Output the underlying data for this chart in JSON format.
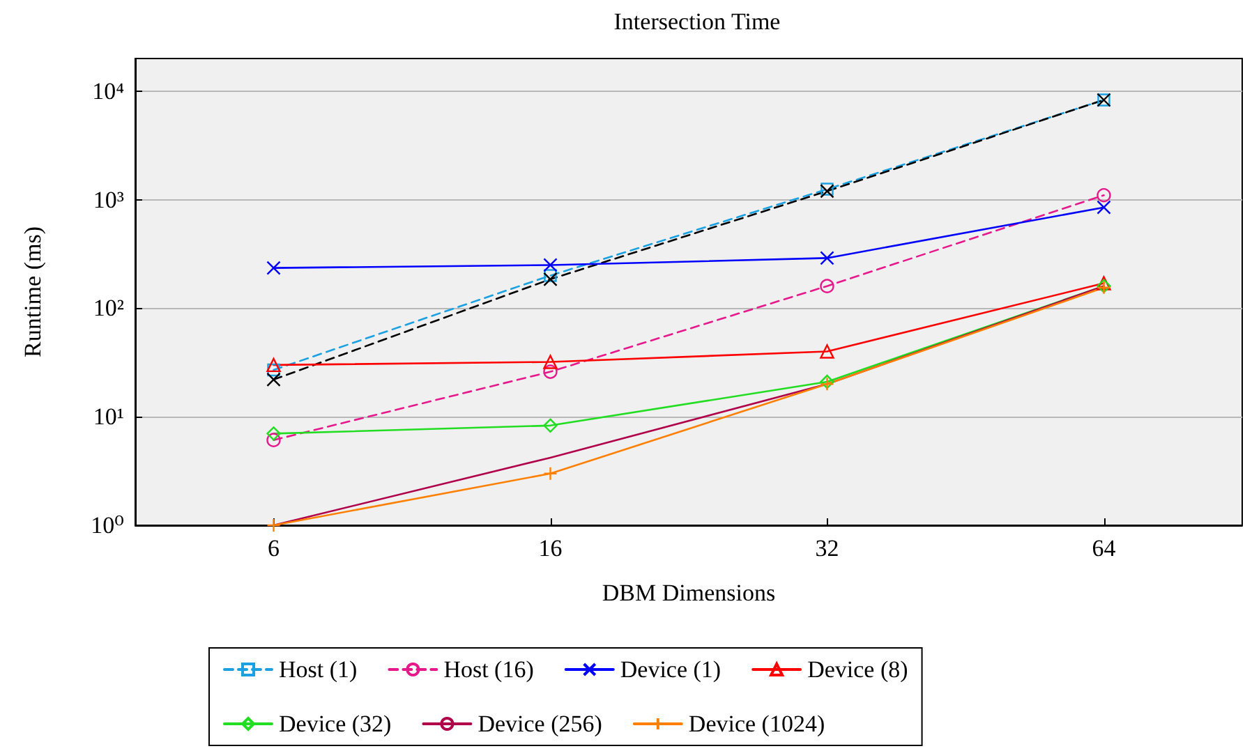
{
  "chart_data": {
    "type": "line",
    "title": "Intersection Time",
    "xlabel": "DBM Dimensions",
    "ylabel": "Runtime (ms)",
    "categories": [
      "6",
      "16",
      "32",
      "64"
    ],
    "series": [
      {
        "name": "Host (1)",
        "color": "#1ba1e2",
        "marker": "square",
        "line_style": "dashed",
        "values": [
          27,
          200,
          1250,
          8300
        ]
      },
      {
        "name": "Host (16)",
        "color": "#e6198c",
        "marker": "circle",
        "line_style": "dashed",
        "values": [
          6.1,
          26,
          160,
          1100
        ]
      },
      {
        "color": "#000000",
        "marker": "cross",
        "line_style": "dashed",
        "values": [
          22,
          185,
          1200,
          8300
        ]
      },
      {
        "name": "Device (1)",
        "color": "#0000ff",
        "marker": "cross",
        "line_style": "solid",
        "values": [
          235,
          250,
          290,
          850
        ]
      },
      {
        "name": "Device (8)",
        "color": "#ff0000",
        "marker": "triangle",
        "line_style": "solid",
        "values": [
          30,
          32,
          40,
          170
        ]
      },
      {
        "name": "Device (32)",
        "color": "#22dd22",
        "marker": "diamond",
        "line_style": "solid",
        "values": [
          7,
          8.3,
          21,
          160
        ]
      },
      {
        "name": "Device (256)",
        "color": "#b0004a",
        "line_style": "solid",
        "values": [
          1,
          4.2,
          20,
          160
        ]
      },
      {
        "name": "Device (1024)",
        "color": "#ff8000",
        "marker": "plus",
        "line_style": "solid",
        "values": [
          1,
          3,
          20,
          155
        ]
      }
    ],
    "log": "y",
    "ylim": [
      1,
      20000
    ],
    "yticks": [
      {
        "value": 1,
        "label": "10⁰"
      },
      {
        "value": 10,
        "label": "10¹"
      },
      {
        "value": 100,
        "label": "10²"
      },
      {
        "value": 1000,
        "label": "10³"
      },
      {
        "value": 10000,
        "label": "10⁴"
      }
    ],
    "grid": "y",
    "legend": "bottom"
  }
}
